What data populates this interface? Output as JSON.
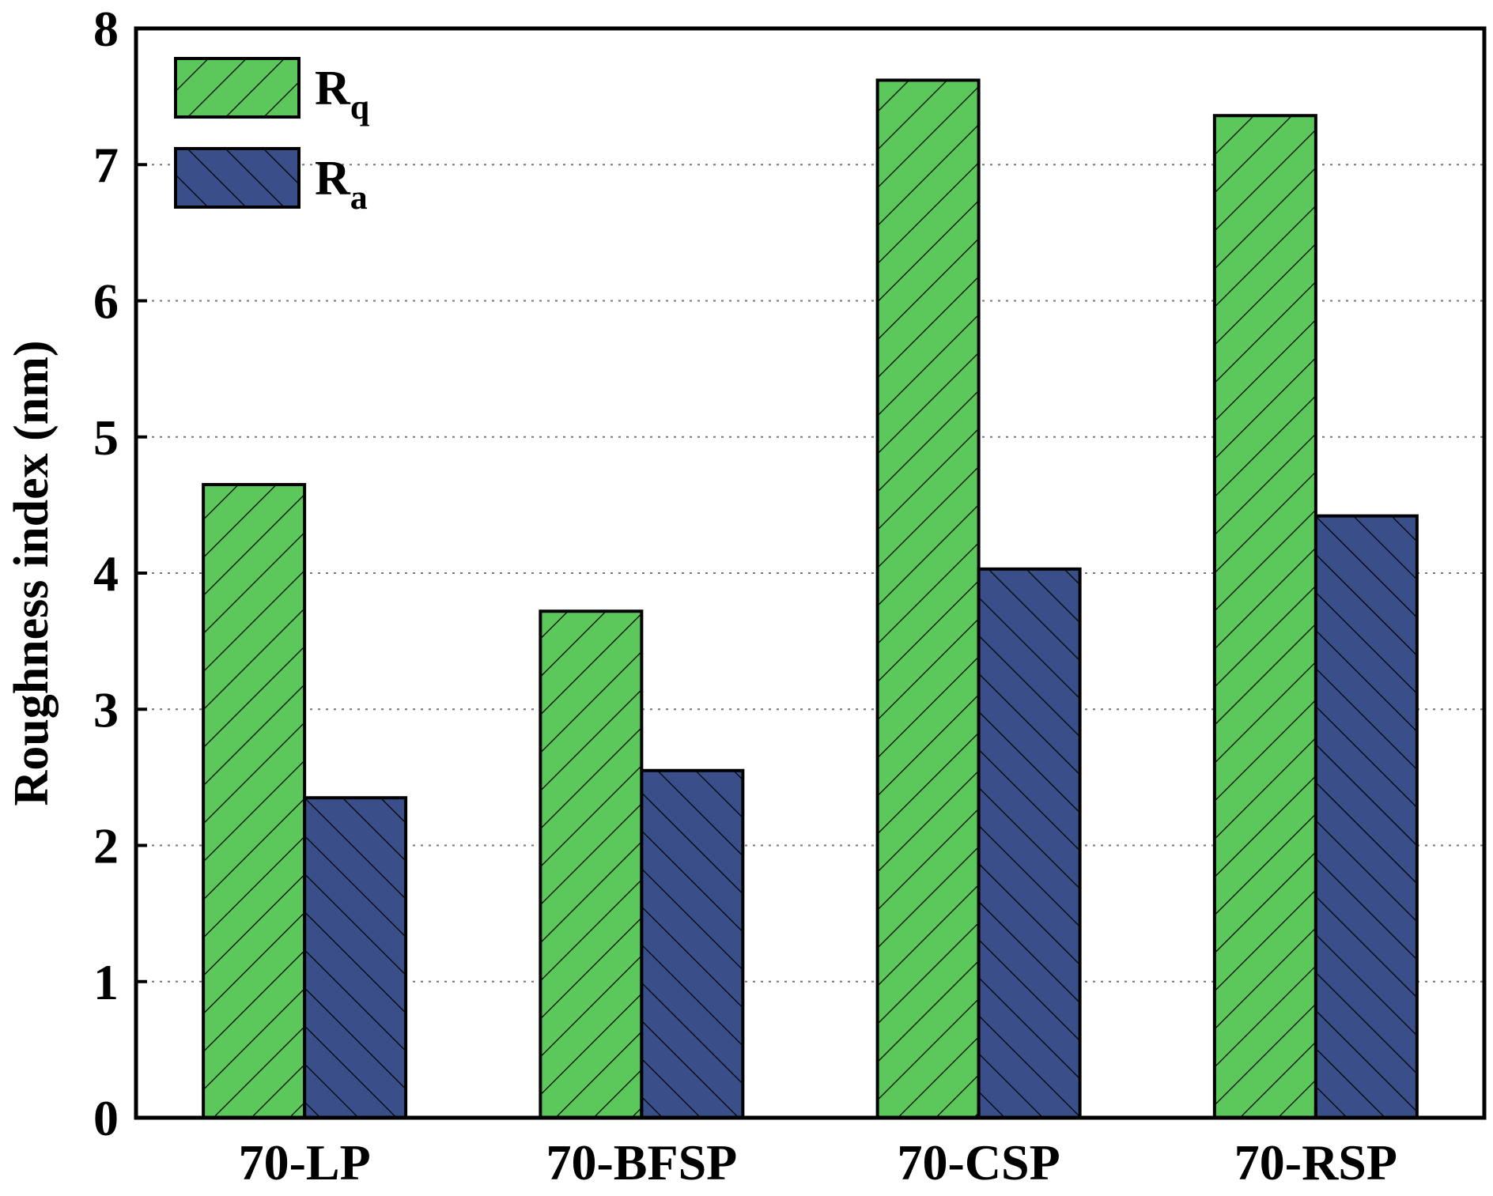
{
  "chart_data": {
    "type": "bar",
    "title": "",
    "xlabel": "",
    "ylabel": "Roughness index (nm)",
    "ylim": [
      0,
      8
    ],
    "yticks": [
      "0",
      "1",
      "2",
      "3",
      "4",
      "5",
      "6",
      "7",
      "8"
    ],
    "grid": "horizontal dotted",
    "legend_position": "top-left",
    "categories": [
      "70-LP",
      "70-BFSP",
      "70-CSP",
      "70-RSP"
    ],
    "series": [
      {
        "name": "Rq",
        "name_main": "R",
        "name_sub": "q",
        "color": "#5cc85c",
        "hatch": "forward-diagonal",
        "values": [
          4.65,
          3.72,
          7.62,
          7.36
        ]
      },
      {
        "name": "Ra",
        "name_main": "R",
        "name_sub": "a",
        "color": "#3a4f8a",
        "hatch": "back-diagonal",
        "values": [
          2.35,
          2.55,
          4.03,
          4.42
        ]
      }
    ]
  }
}
